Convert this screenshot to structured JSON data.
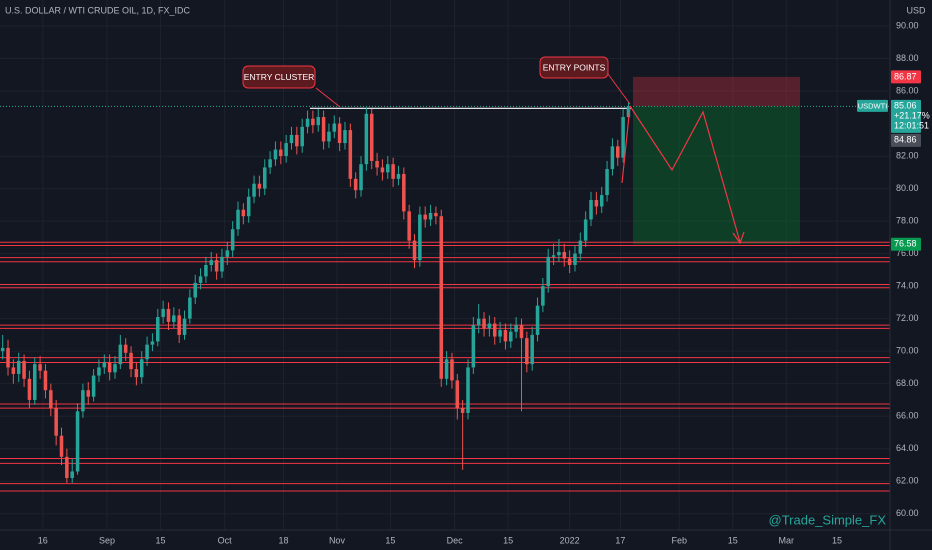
{
  "chart_data": {
    "type": "candlestick",
    "title": "U.S. DOLLAR / WTI CRUDE OIL, 1D, FX_IDC",
    "y_unit": "USD",
    "watermark": "@Trade_Simple_FX",
    "annotations": [
      "ENTRY CLUSTER",
      "ENTRY POINTS"
    ],
    "up_color": "#26a69a",
    "down_color": "#ef5350",
    "xlim": [
      0,
      166.4
    ],
    "xticks": [
      {
        "value": 8,
        "label": "16"
      },
      {
        "value": 20,
        "label": "Sep"
      },
      {
        "value": 30,
        "label": "15"
      },
      {
        "value": 42,
        "label": "Oct"
      },
      {
        "value": 53,
        "label": "18"
      },
      {
        "value": 63,
        "label": "Nov"
      },
      {
        "value": 73,
        "label": "15"
      },
      {
        "value": 85,
        "label": "Dec"
      },
      {
        "value": 95,
        "label": "15"
      },
      {
        "value": 106.5,
        "label": "2022"
      },
      {
        "value": 116,
        "label": "17"
      },
      {
        "value": 127,
        "label": "Feb"
      },
      {
        "value": 137,
        "label": "15"
      },
      {
        "value": 147,
        "label": "Mar"
      },
      {
        "value": 156.5,
        "label": "15"
      }
    ],
    "ylim": [
      59.0,
      91.6
    ],
    "yticks": [
      {
        "value": 90,
        "label": "90.00"
      },
      {
        "value": 88,
        "label": "88.00"
      },
      {
        "value": 86,
        "label": "86.00"
      },
      {
        "value": 82,
        "label": "82.00"
      },
      {
        "value": 80,
        "label": "80.00"
      },
      {
        "value": 78,
        "label": "78.00"
      },
      {
        "value": 76,
        "label": "76.00"
      },
      {
        "value": 74,
        "label": "74.00"
      },
      {
        "value": 72,
        "label": "72.00"
      },
      {
        "value": 70,
        "label": "70.00"
      },
      {
        "value": 68,
        "label": "68.00"
      },
      {
        "value": 66,
        "label": "66.00"
      },
      {
        "value": 64,
        "label": "64.00"
      },
      {
        "value": 62,
        "label": "62.00"
      },
      {
        "value": 60,
        "label": "60.00"
      }
    ],
    "grid": true,
    "open": [
      70.0,
      70.2,
      69.0,
      68.6,
      69.4,
      68.3,
      67.0,
      69.2,
      68.8,
      67.6,
      66.5,
      64.8,
      63.5,
      62.2,
      62.6,
      66.3,
      67.6,
      67.2,
      68.5,
      69.0,
      69.3,
      68.7,
      69.2,
      70.4,
      69.9,
      68.9,
      68.4,
      69.5,
      70.4,
      70.6,
      72.1,
      72.6,
      71.8,
      72.2,
      71.0,
      72.0,
      73.3,
      74.2,
      74.6,
      75.3,
      75.6,
      74.9,
      75.8,
      76.2,
      77.5,
      78.7,
      78.3,
      79.5,
      80.3,
      80.0,
      81.3,
      81.8,
      82.4,
      82.0,
      82.8,
      83.3,
      82.6,
      83.8,
      84.3,
      83.9,
      84.4,
      82.9,
      83.5,
      84.0,
      82.8,
      83.6,
      80.6,
      79.9,
      81.5,
      84.6,
      81.7,
      81.3,
      81.0,
      81.5,
      80.6,
      80.9,
      78.6,
      76.8,
      75.6,
      78.4,
      78.1,
      78.5,
      78.3,
      68.3,
      69.5,
      68.2,
      66.5,
      66.2,
      69.0,
      71.6,
      72.0,
      71.4,
      71.7,
      70.9,
      71.3,
      70.6,
      71.2,
      71.6,
      70.8,
      69.2,
      71.0,
      72.8,
      74.0,
      75.8,
      75.9,
      76.1,
      75.7,
      75.3,
      76.0,
      76.8,
      78.1,
      79.3,
      78.9,
      79.6,
      81.2,
      82.6,
      81.9,
      84.4
    ],
    "high": [
      71.0,
      70.7,
      69.5,
      69.9,
      69.8,
      68.8,
      69.6,
      69.7,
      69.2,
      68.0,
      67.0,
      65.3,
      64.0,
      63.4,
      66.8,
      68.0,
      68.1,
      68.9,
      69.5,
      69.8,
      69.8,
      69.7,
      71.0,
      70.8,
      70.3,
      69.3,
      70.0,
      70.9,
      71.1,
      72.6,
      73.1,
      73.0,
      72.7,
      72.6,
      72.5,
      73.8,
      74.7,
      75.1,
      75.8,
      76.1,
      76.0,
      76.3,
      76.7,
      78.0,
      79.2,
      79.1,
      80.0,
      80.8,
      80.8,
      81.8,
      82.3,
      82.9,
      82.9,
      83.3,
      83.8,
      83.8,
      84.3,
      84.8,
      84.8,
      84.9,
      84.8,
      84.0,
      84.5,
      84.4,
      84.1,
      84.0,
      81.0,
      82.0,
      85.0,
      84.9,
      82.2,
      81.8,
      82.0,
      81.9,
      81.4,
      81.3,
      79.0,
      77.2,
      78.9,
      78.9,
      79.0,
      78.9,
      78.7,
      70.0,
      69.9,
      68.6,
      67.0,
      69.5,
      72.1,
      72.9,
      72.4,
      72.2,
      72.1,
      71.8,
      71.7,
      71.7,
      72.1,
      72.0,
      71.2,
      71.5,
      73.3,
      74.5,
      76.3,
      76.6,
      76.9,
      76.6,
      76.2,
      76.5,
      77.3,
      78.6,
      79.8,
      79.8,
      80.1,
      81.7,
      83.1,
      83.0,
      84.9,
      85.3
    ],
    "low": [
      69.5,
      68.5,
      68.0,
      68.1,
      67.8,
      66.5,
      66.7,
      68.3,
      67.1,
      66.0,
      64.2,
      63.0,
      61.9,
      61.9,
      62.4,
      65.9,
      66.7,
      66.9,
      68.1,
      68.6,
      68.2,
      68.3,
      68.9,
      69.4,
      68.4,
      67.9,
      68.0,
      69.1,
      70.0,
      70.3,
      71.7,
      71.3,
      71.4,
      70.5,
      70.7,
      71.7,
      72.9,
      73.8,
      74.2,
      74.9,
      74.4,
      74.5,
      75.3,
      75.8,
      77.1,
      77.8,
      77.9,
      79.1,
      79.5,
      79.6,
      80.9,
      81.4,
      81.5,
      81.6,
      82.4,
      82.1,
      82.2,
      83.4,
      83.4,
      83.5,
      82.4,
      82.5,
      83.1,
      82.3,
      82.4,
      80.1,
      79.4,
      79.5,
      81.1,
      81.2,
      80.8,
      80.5,
      80.6,
      80.1,
      80.2,
      78.1,
      76.3,
      75.1,
      75.2,
      77.6,
      77.7,
      77.8,
      67.8,
      67.9,
      67.7,
      65.8,
      62.7,
      65.8,
      68.6,
      71.1,
      70.9,
      70.9,
      70.4,
      70.5,
      70.1,
      70.2,
      70.8,
      66.3,
      68.7,
      68.8,
      70.6,
      72.4,
      73.6,
      75.3,
      75.5,
      75.2,
      74.8,
      74.9,
      75.6,
      76.4,
      77.7,
      78.4,
      78.5,
      79.2,
      80.8,
      81.4,
      81.6,
      84.1
    ],
    "close": [
      70.2,
      69.0,
      68.6,
      69.4,
      68.3,
      67.0,
      69.2,
      68.8,
      67.6,
      66.5,
      64.8,
      63.5,
      62.2,
      62.6,
      66.3,
      67.6,
      67.2,
      68.5,
      69.0,
      69.3,
      68.7,
      69.2,
      70.4,
      69.9,
      68.9,
      68.4,
      69.5,
      70.4,
      70.6,
      72.1,
      72.6,
      71.8,
      72.2,
      71.0,
      72.0,
      73.3,
      74.2,
      74.6,
      75.3,
      75.6,
      74.9,
      75.8,
      76.2,
      77.5,
      78.7,
      78.3,
      79.5,
      80.3,
      80.0,
      81.3,
      81.8,
      82.4,
      82.0,
      82.8,
      83.3,
      82.6,
      83.8,
      84.3,
      83.9,
      84.4,
      82.9,
      83.5,
      84.0,
      82.8,
      83.6,
      80.6,
      79.9,
      81.5,
      84.6,
      81.7,
      81.3,
      81.0,
      81.5,
      80.6,
      80.9,
      78.6,
      76.8,
      75.6,
      78.4,
      78.1,
      78.5,
      78.3,
      68.3,
      69.5,
      68.2,
      66.5,
      66.2,
      69.0,
      71.6,
      72.0,
      71.4,
      71.7,
      70.9,
      71.3,
      70.6,
      71.2,
      71.6,
      70.8,
      69.2,
      71.0,
      72.8,
      74.0,
      75.8,
      75.9,
      76.1,
      75.7,
      75.3,
      76.0,
      76.8,
      78.1,
      79.3,
      78.9,
      79.6,
      81.2,
      82.6,
      81.9,
      84.4,
      85.06
    ],
    "levels": [
      76.7,
      76.5,
      75.75,
      75.5,
      74.1,
      73.9,
      71.6,
      71.4,
      69.6,
      69.3,
      66.75,
      66.5,
      63.4,
      63.1,
      61.85,
      61.4
    ],
    "level_color": "#f23645",
    "stop": 86.87,
    "entry": 85.06,
    "target": 76.58,
    "bid": 84.86,
    "symbol": "USDWTI",
    "change": "+21.17%",
    "countdown": "12:01:51"
  }
}
